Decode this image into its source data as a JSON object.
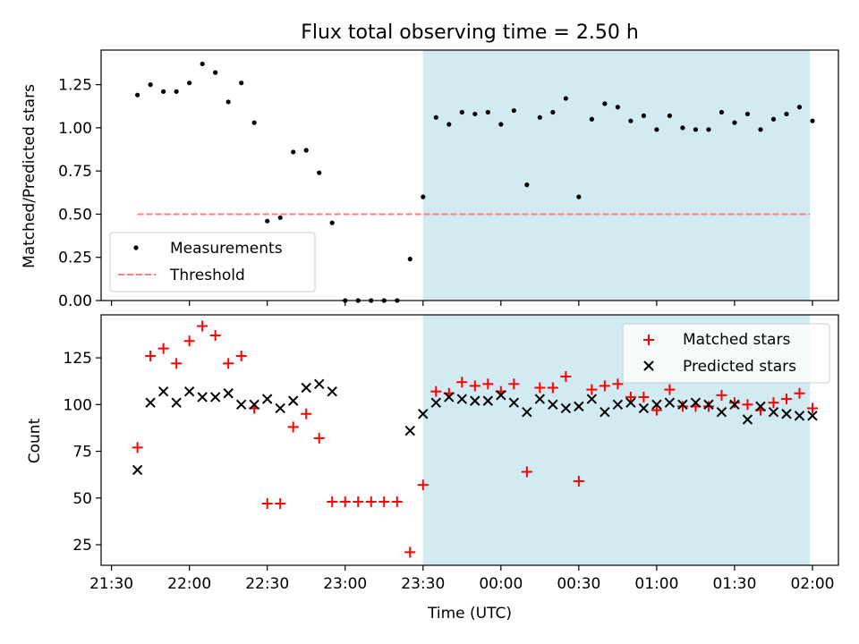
{
  "figure_title": "Flux total observing time = 2.50 h",
  "chart_data": [
    {
      "type": "scatter",
      "ylabel": "Matched/Predicted stars",
      "ylim": [
        0,
        1.45
      ],
      "xlim": [
        "21:26",
        "02:10"
      ],
      "y_ticks": [
        0.0,
        0.25,
        0.5,
        0.75,
        1.0,
        1.25
      ],
      "y_tick_labels": [
        "0.00",
        "0.25",
        "0.50",
        "0.75",
        "1.00",
        "1.25"
      ],
      "shaded_region": {
        "start": "23:30",
        "end": "01:59",
        "color": "#add8e6"
      },
      "threshold": {
        "name": "Threshold",
        "value": 0.5,
        "start": "21:40",
        "end": "01:59",
        "color": "#ff7f7f"
      },
      "legend": {
        "position": "lower-left",
        "entries": [
          "Measurements",
          "Threshold"
        ]
      },
      "series": [
        {
          "name": "Measurements",
          "marker": "dot",
          "color": "#000000",
          "x": [
            "21:40",
            "21:45",
            "21:50",
            "21:55",
            "22:00",
            "22:05",
            "22:10",
            "22:15",
            "22:20",
            "22:25",
            "22:30",
            "22:35",
            "22:40",
            "22:45",
            "22:50",
            "22:55",
            "23:00",
            "23:05",
            "23:10",
            "23:15",
            "23:20",
            "23:25",
            "23:30",
            "23:35",
            "23:40",
            "23:45",
            "23:50",
            "23:55",
            "00:00",
            "00:05",
            "00:10",
            "00:15",
            "00:20",
            "00:25",
            "00:30",
            "00:35",
            "00:40",
            "00:45",
            "00:50",
            "00:55",
            "01:00",
            "01:05",
            "01:10",
            "01:15",
            "01:20",
            "01:25",
            "01:30",
            "01:35",
            "01:40",
            "01:45",
            "01:50",
            "01:55",
            "02:00"
          ],
          "y": [
            1.19,
            1.25,
            1.21,
            1.21,
            1.26,
            1.37,
            1.32,
            1.15,
            1.26,
            1.03,
            0.46,
            0.48,
            0.86,
            0.87,
            0.74,
            0.45,
            0.0,
            0.0,
            0.0,
            0.0,
            0.0,
            0.24,
            0.6,
            1.06,
            1.02,
            1.09,
            1.08,
            1.09,
            1.02,
            1.1,
            0.67,
            1.06,
            1.09,
            1.17,
            0.6,
            1.05,
            1.14,
            1.12,
            1.04,
            1.07,
            0.99,
            1.07,
            1.0,
            0.99,
            0.99,
            1.09,
            1.03,
            1.08,
            0.99,
            1.05,
            1.08,
            1.12,
            1.04
          ]
        }
      ]
    },
    {
      "type": "scatter",
      "ylabel": "Count",
      "xlabel": "Time (UTC)",
      "ylim": [
        14,
        148
      ],
      "xlim": [
        "21:26",
        "02:10"
      ],
      "y_ticks": [
        25,
        50,
        75,
        100,
        125
      ],
      "y_tick_labels": [
        "25",
        "50",
        "75",
        "100",
        "125"
      ],
      "x_ticks": [
        "21:30",
        "22:00",
        "22:30",
        "23:00",
        "23:30",
        "00:00",
        "00:30",
        "01:00",
        "01:30",
        "02:00"
      ],
      "x_tick_labels": [
        "21:30",
        "22:00",
        "22:30",
        "23:00",
        "23:30",
        "00:00",
        "00:30",
        "01:00",
        "01:30",
        "02:00"
      ],
      "shaded_region": {
        "start": "23:30",
        "end": "01:59",
        "color": "#add8e6"
      },
      "legend": {
        "position": "top-right",
        "entries": [
          "Matched stars",
          "Predicted stars"
        ]
      },
      "series": [
        {
          "name": "Matched stars",
          "marker": "plus",
          "color": "#ff0000",
          "x": [
            "21:40",
            "21:45",
            "21:50",
            "21:55",
            "22:00",
            "22:05",
            "22:10",
            "22:15",
            "22:20",
            "22:25",
            "22:30",
            "22:35",
            "22:40",
            "22:45",
            "22:50",
            "22:55",
            "23:00",
            "23:05",
            "23:10",
            "23:15",
            "23:20",
            "23:25",
            "23:30",
            "23:35",
            "23:40",
            "23:45",
            "23:50",
            "23:55",
            "00:00",
            "00:05",
            "00:10",
            "00:15",
            "00:20",
            "00:25",
            "00:30",
            "00:35",
            "00:40",
            "00:45",
            "00:50",
            "00:55",
            "01:00",
            "01:05",
            "01:10",
            "01:15",
            "01:20",
            "01:25",
            "01:30",
            "01:35",
            "01:40",
            "01:45",
            "01:50",
            "01:55",
            "02:00"
          ],
          "y": [
            77,
            126,
            130,
            122,
            134,
            142,
            137,
            122,
            126,
            98,
            47,
            47,
            88,
            95,
            82,
            48,
            48,
            48,
            48,
            48,
            48,
            21,
            57,
            107,
            106,
            112,
            110,
            111,
            107,
            111,
            64,
            109,
            109,
            115,
            59,
            108,
            110,
            111,
            104,
            104,
            97,
            108,
            99,
            99,
            99,
            105,
            101,
            100,
            97,
            101,
            103,
            106,
            98
          ]
        },
        {
          "name": "Predicted stars",
          "marker": "x",
          "color": "#000000",
          "x": [
            "21:40",
            "21:45",
            "21:50",
            "21:55",
            "22:00",
            "22:05",
            "22:10",
            "22:15",
            "22:20",
            "22:25",
            "22:30",
            "22:35",
            "22:40",
            "22:45",
            "22:50",
            "22:55",
            "23:25",
            "23:30",
            "23:35",
            "23:40",
            "23:45",
            "23:50",
            "23:55",
            "00:00",
            "00:05",
            "00:10",
            "00:15",
            "00:20",
            "00:25",
            "00:30",
            "00:35",
            "00:40",
            "00:45",
            "00:50",
            "00:55",
            "01:00",
            "01:05",
            "01:10",
            "01:15",
            "01:20",
            "01:25",
            "01:30",
            "01:35",
            "01:40",
            "01:45",
            "01:50",
            "01:55",
            "02:00"
          ],
          "y": [
            65,
            101,
            107,
            101,
            107,
            104,
            104,
            106,
            100,
            100,
            103,
            98,
            102,
            109,
            111,
            107,
            86,
            95,
            101,
            104,
            103,
            102,
            102,
            105,
            101,
            96,
            103,
            100,
            98,
            99,
            103,
            96,
            100,
            101,
            98,
            100,
            101,
            100,
            101,
            100,
            96,
            100,
            92,
            99,
            96,
            95,
            94,
            94
          ]
        }
      ]
    }
  ]
}
